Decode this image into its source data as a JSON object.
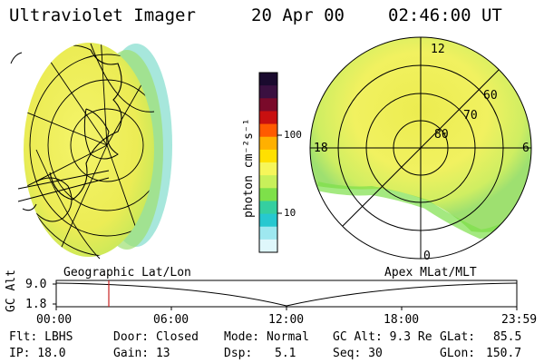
{
  "header": {
    "instrument": "Ultraviolet Imager",
    "date": "20 Apr 00",
    "time": "02:46:00 UT"
  },
  "colorbar": {
    "unit_label": "photon cm⁻²s⁻¹",
    "ticks": [
      "100",
      "10"
    ],
    "colors": [
      "#1a0a2e",
      "#3a1040",
      "#7a0a2a",
      "#c81010",
      "#ff5a00",
      "#ffb000",
      "#ffe000",
      "#f6f65a",
      "#c8f05a",
      "#7ee04a",
      "#35cfa0",
      "#27c8d0",
      "#9ee8f0",
      "#dff7fb"
    ]
  },
  "geographic": {
    "caption": "Geographic Lat/Lon"
  },
  "polar": {
    "caption": "Apex MLat/MLT",
    "lat_labels": [
      "60",
      "70",
      "80"
    ],
    "mlt_labels": {
      "top": "12",
      "left": "18",
      "right": "6",
      "bottom": "0"
    }
  },
  "altitude_plot": {
    "axis_label": "GC Alt",
    "yticks": [
      "9.0",
      "1.8"
    ],
    "xticks": [
      "00:00",
      "06:00",
      "12:00",
      "18:00",
      "23:59"
    ],
    "cursor_time": "02:46"
  },
  "status": {
    "filter": "Flt: LBHS",
    "ip": "IP: 18.0",
    "door": "Door: Closed",
    "gain": "Gain: 13",
    "mode": "Mode: Normal",
    "dsp": "Dsp:",
    "dsp_value": "5.1",
    "gc_alt": "GC Alt: 9.3 Re",
    "seq": "Seq: 30",
    "glat": "GLat:",
    "glat_value": "85.5",
    "glon": "GLon:",
    "glon_value": "150.7"
  }
}
